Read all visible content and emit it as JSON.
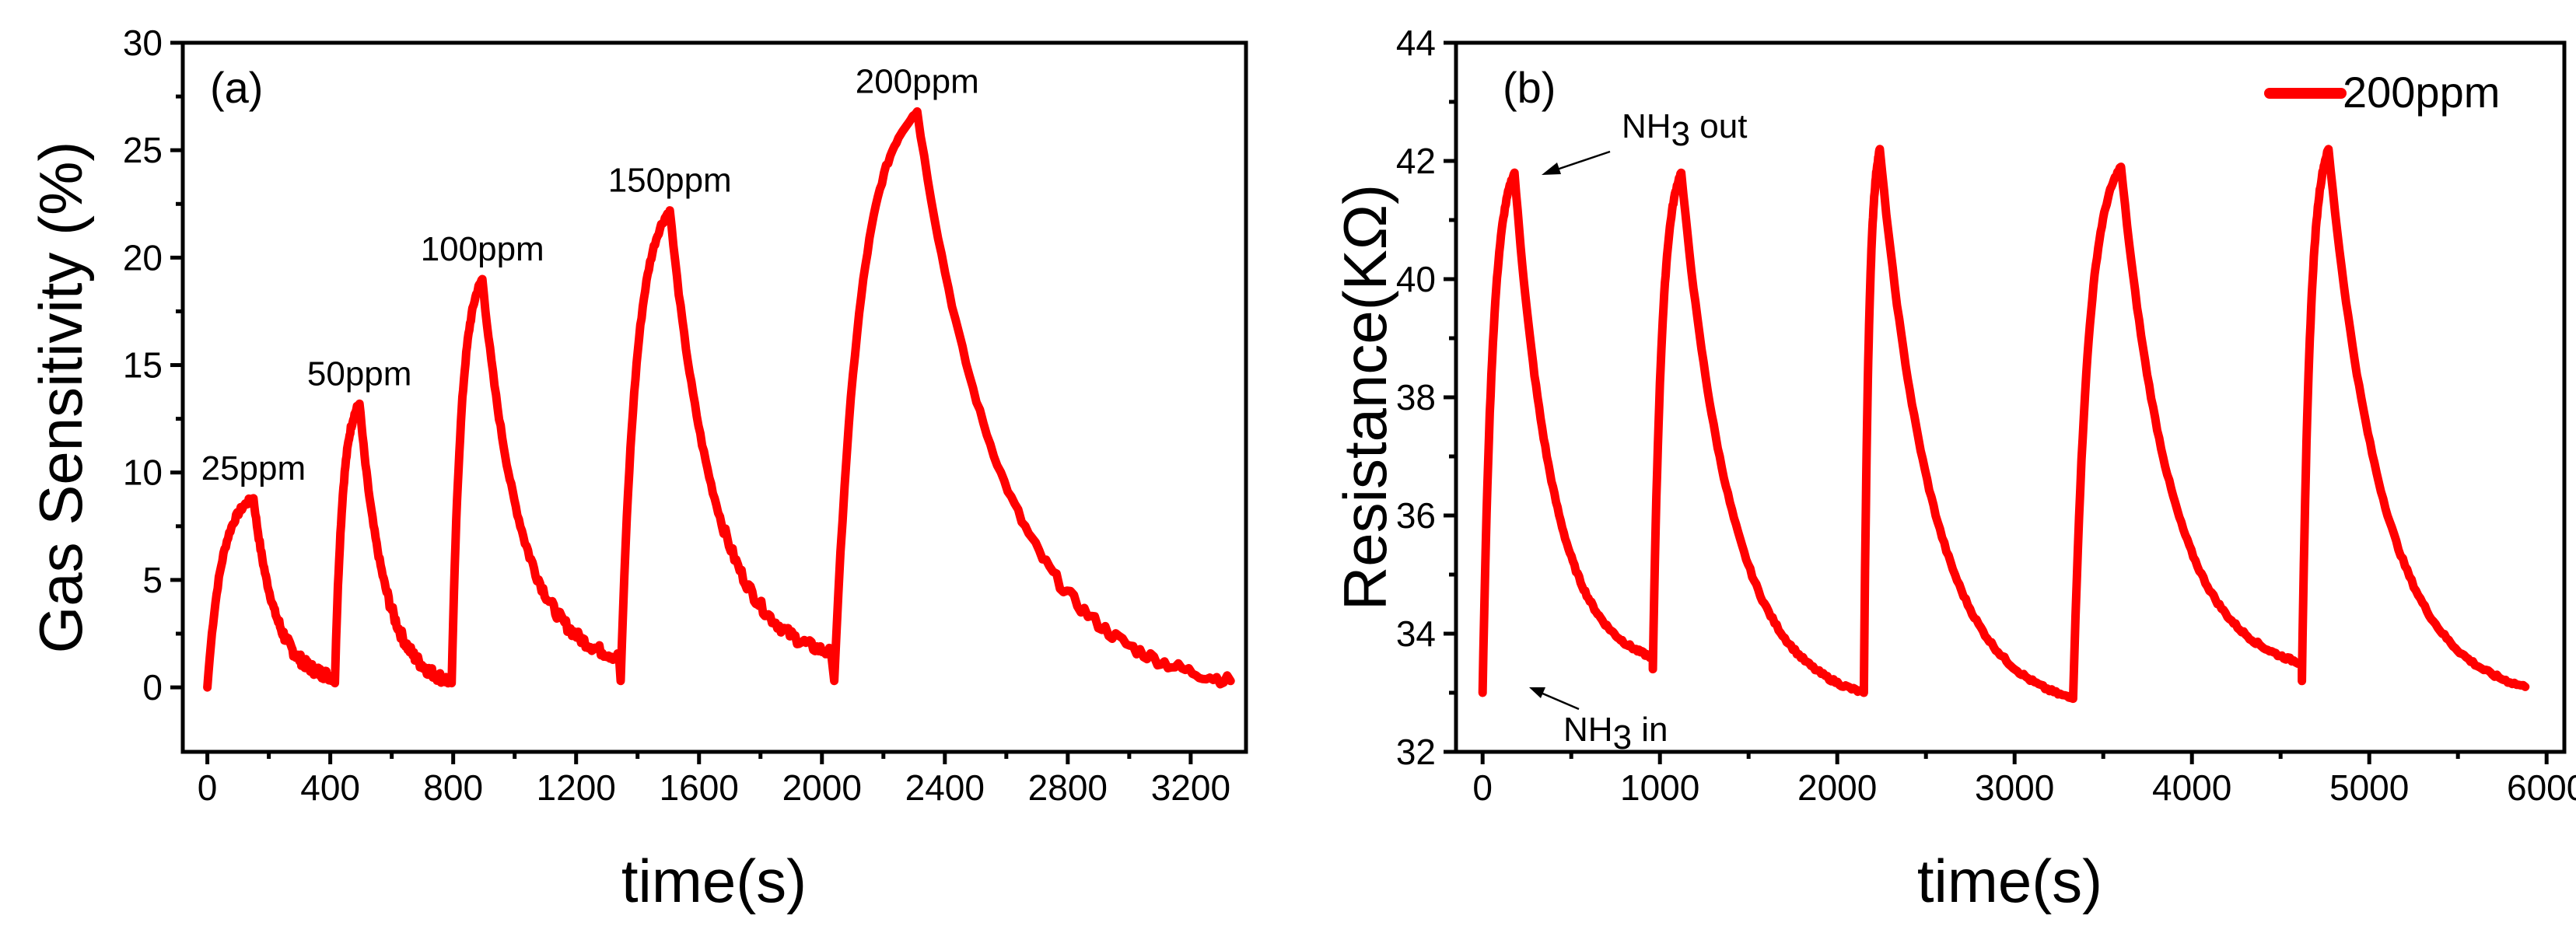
{
  "chart_data": [
    {
      "panel": "(a)",
      "type": "line",
      "xlabel": "time(s)",
      "ylabel": "Gas Sensitivity (%)",
      "xlim": [
        -80,
        3380
      ],
      "ylim": [
        -3,
        30
      ],
      "xticks": [
        0,
        400,
        800,
        1200,
        1600,
        2000,
        2400,
        2800,
        3200
      ],
      "yticks": [
        0,
        5,
        10,
        15,
        20,
        25,
        30
      ],
      "color": "#ff0000",
      "cycles": [
        {
          "label": "25ppm",
          "t_on": 0,
          "t_peak": 150,
          "t_end": 410,
          "base": 0.0,
          "peak": 8.8,
          "tail": 0.5
        },
        {
          "label": "50ppm",
          "t_on": 415,
          "t_peak": 495,
          "t_end": 790,
          "base": 0.2,
          "peak": 13.2,
          "tail": 0.3
        },
        {
          "label": "100ppm",
          "t_on": 795,
          "t_peak": 895,
          "t_end": 1340,
          "base": 0.2,
          "peak": 19.0,
          "tail": 1.4
        },
        {
          "label": "150ppm",
          "t_on": 1345,
          "t_peak": 1505,
          "t_end": 2030,
          "base": 0.3,
          "peak": 22.2,
          "tail": 1.6
        },
        {
          "label": "200ppm",
          "t_on": 2040,
          "t_peak": 2310,
          "t_end": 3330,
          "base": 0.3,
          "peak": 26.8,
          "tail": 0.3
        }
      ]
    },
    {
      "panel": "(b)",
      "type": "line",
      "xlabel": "time(s)",
      "ylabel": "Resistance(KΩ)",
      "xlim": [
        -150,
        6100
      ],
      "ylim": [
        32,
        44
      ],
      "xticks": [
        0,
        1000,
        2000,
        3000,
        4000,
        5000,
        6000
      ],
      "yticks": [
        32,
        34,
        36,
        38,
        40,
        42,
        44
      ],
      "color": "#ff0000",
      "legend": {
        "label": "200ppm",
        "position": "top-right"
      },
      "annotations": [
        {
          "text_main": "NH",
          "text_sub": "3",
          "text_tail": " out"
        },
        {
          "text_main": "NH",
          "text_sub": "3",
          "text_tail": " in"
        }
      ],
      "cycles": [
        {
          "t_on": 0,
          "t_peak": 180,
          "t_end": 960,
          "base": 33.0,
          "peak": 41.8,
          "tail": 33.6
        },
        {
          "t_on": 960,
          "t_peak": 1120,
          "t_end": 2150,
          "base": 33.4,
          "peak": 41.8,
          "tail": 33.0
        },
        {
          "t_on": 2150,
          "t_peak": 2240,
          "t_end": 3330,
          "base": 33.0,
          "peak": 42.2,
          "tail": 32.9
        },
        {
          "t_on": 3330,
          "t_peak": 3600,
          "t_end": 4620,
          "base": 32.9,
          "peak": 41.9,
          "tail": 33.5
        },
        {
          "t_on": 4620,
          "t_peak": 4770,
          "t_end": 5880,
          "base": 33.2,
          "peak": 42.2,
          "tail": 33.1
        }
      ]
    }
  ]
}
